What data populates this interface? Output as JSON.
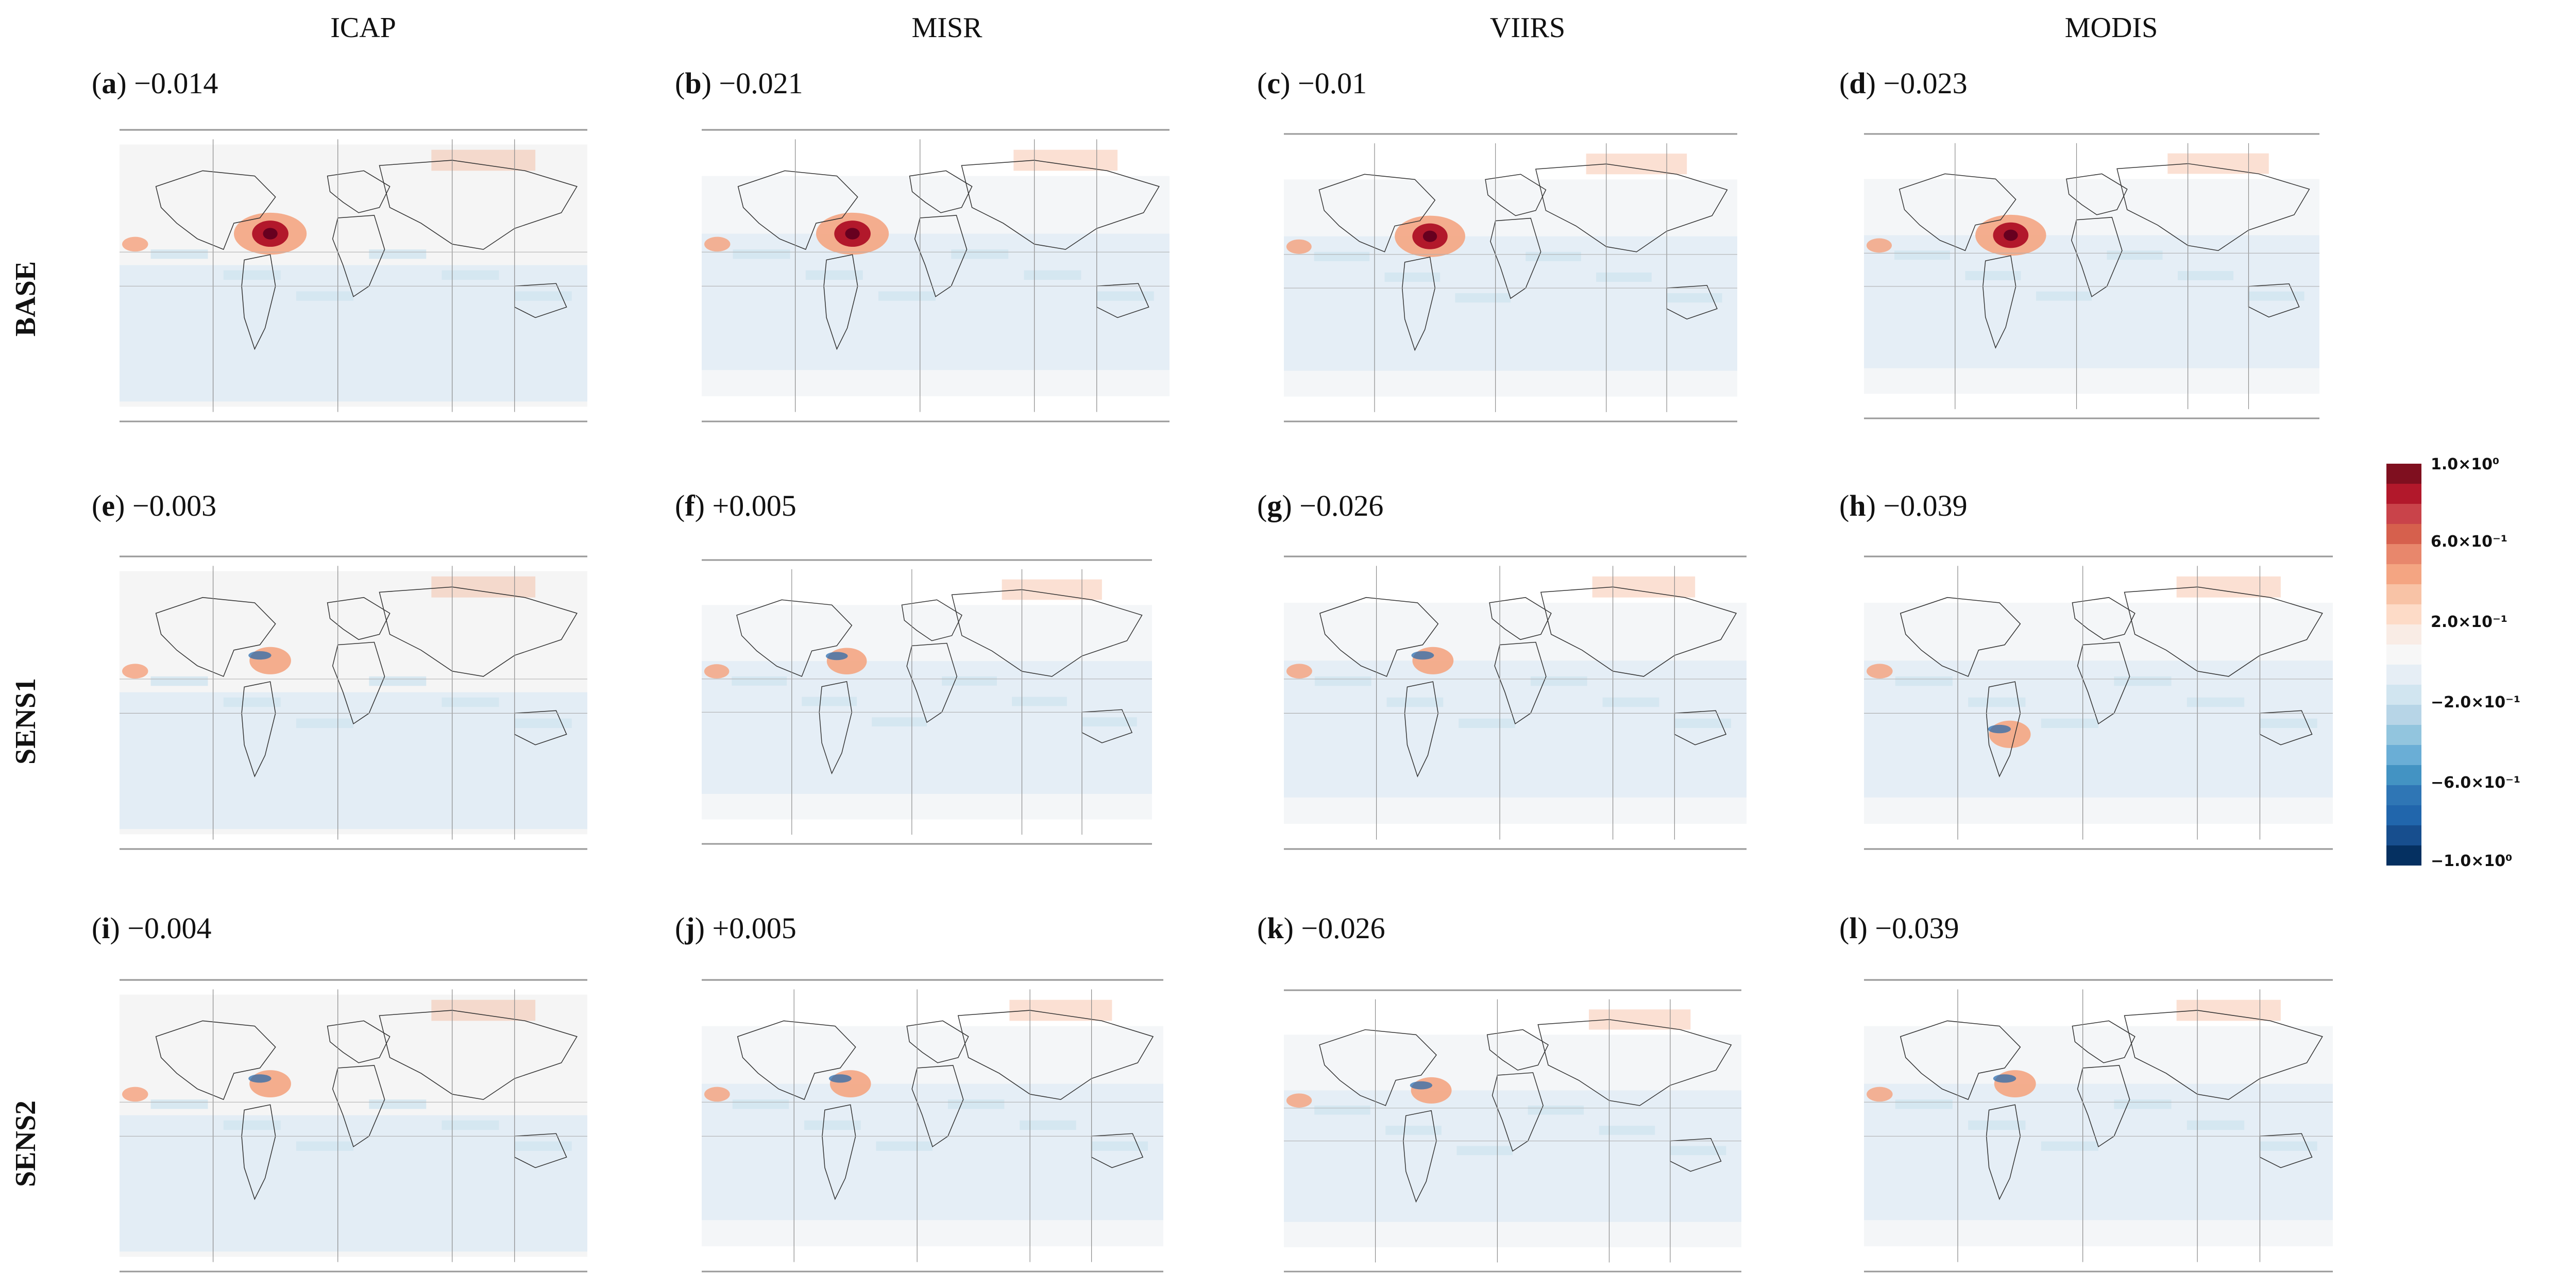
{
  "columns": [
    "ICAP",
    "MISR",
    "VIIRS",
    "MODIS"
  ],
  "rows": [
    "BASE",
    "SENS1",
    "SENS2"
  ],
  "panels": [
    {
      "letter": "a",
      "value": "−0.014"
    },
    {
      "letter": "b",
      "value": "−0.021"
    },
    {
      "letter": "c",
      "value": "−0.01"
    },
    {
      "letter": "d",
      "value": "−0.023"
    },
    {
      "letter": "e",
      "value": "−0.003"
    },
    {
      "letter": "f",
      "value": "+0.005"
    },
    {
      "letter": "g",
      "value": "−0.026"
    },
    {
      "letter": "h",
      "value": "−0.039"
    },
    {
      "letter": "i",
      "value": "−0.004"
    },
    {
      "letter": "j",
      "value": "+0.005"
    },
    {
      "letter": "k",
      "value": "−0.026"
    },
    {
      "letter": "l",
      "value": "−0.039"
    }
  ],
  "colorbar": {
    "ticks": [
      "1.0×10⁰",
      "6.0×10⁻¹",
      "2.0×10⁻¹",
      "−2.0×10⁻¹",
      "−6.0×10⁻¹",
      "−1.0×10⁰"
    ],
    "colors": [
      "#7f0f1f",
      "#b2182b",
      "#c9434a",
      "#d6604d",
      "#e8876c",
      "#f4a582",
      "#f8c3a6",
      "#fddbc7",
      "#f9ece5",
      "#f7f7f7",
      "#e6eef5",
      "#d1e5f0",
      "#b7d5e7",
      "#92c5de",
      "#6aaed6",
      "#4393c3",
      "#2f76b5",
      "#2166ac",
      "#174e8e",
      "#053061"
    ]
  },
  "palette": {
    "red": "#b2182b",
    "dark_red": "#67001f",
    "light_red": "#f4a582",
    "blue": "#2166ac",
    "light_blue": "#d1e5f0",
    "very_light_blue": "#e3edf5"
  }
}
